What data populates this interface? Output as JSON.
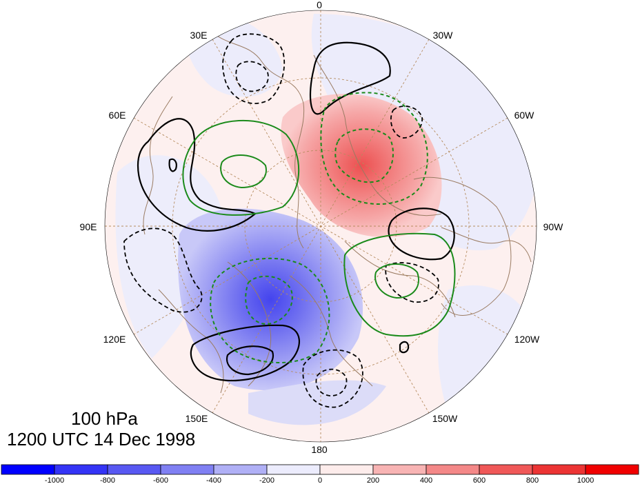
{
  "map": {
    "projection": "north-polar-stereographic",
    "longitude_labels": {
      "top": "0",
      "top_left": "30E",
      "top_right": "30W",
      "upper_left": "60E",
      "upper_right": "60W",
      "left": "90E",
      "right": "90W",
      "lower_left": "120E",
      "lower_right": "120W",
      "bottom_left": "150E",
      "bottom_right": "150W",
      "bottom": "180"
    },
    "colors": {
      "positive_fill": "#f07070",
      "negative_fill": "#6a6ae8",
      "coastline": "#9a7b62",
      "grid_line": "#b58b5e",
      "positive_contour": "#000000",
      "green_contour": "#1a8a1a"
    }
  },
  "title": {
    "level": "100 hPa",
    "timestamp": "1200 UTC 14 Dec 1998"
  },
  "colorbar": {
    "tick_labels": [
      "-1000",
      "-800",
      "-600",
      "-400",
      "-200",
      "0",
      "200",
      "400",
      "600",
      "800",
      "1000"
    ],
    "colors": [
      "#0000ff",
      "#3434f6",
      "#5858f2",
      "#8080f3",
      "#b0b0f6",
      "#ececfd",
      "#fdeceb",
      "#f8b4b4",
      "#f48888",
      "#f05858",
      "#ec3434",
      "#f00000"
    ]
  }
}
